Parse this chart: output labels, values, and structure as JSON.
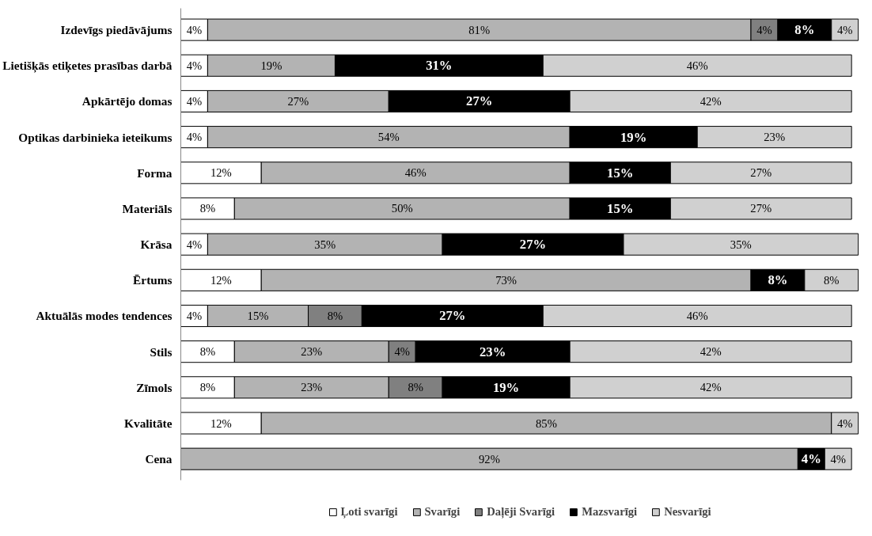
{
  "chart_data": {
    "type": "bar",
    "orientation": "horizontal",
    "stacked": true,
    "grid": false,
    "legend": "bottom",
    "categories": [
      "Izdevīgs piedāvājums",
      "Lietišķās etiķetes prasības darbā",
      "Apkārtējo domas",
      "Optikas darbinieka ieteikums",
      "Forma",
      "Materiāls",
      "Krāsa",
      "Ērtums",
      "Aktuālās modes tendences",
      "Stils",
      "Zīmols",
      "Kvalitāte",
      "Cena"
    ],
    "series": [
      {
        "name": "Ļoti svarīgi",
        "color": "#ffffff",
        "values": [
          4,
          4,
          4,
          4,
          12,
          8,
          4,
          12,
          4,
          8,
          8,
          12,
          null
        ],
        "value_labels": [
          "4%",
          "4%",
          "4%",
          "4%",
          "12%",
          "8%",
          "4%",
          "12%",
          "4%",
          "8%",
          "8%",
          "12%",
          null
        ]
      },
      {
        "name": "Svarīgi",
        "color": "#b3b3b3",
        "values": [
          81,
          19,
          27,
          54,
          46,
          50,
          35,
          73,
          15,
          23,
          23,
          85,
          92
        ],
        "value_labels": [
          "81%",
          "19%",
          "27%",
          "54%",
          "46%",
          "50%",
          "35%",
          "73%",
          "15%",
          "23%",
          "23%",
          "85%",
          "92%"
        ]
      },
      {
        "name": "Daļēji Svarīgi",
        "color": "#808080",
        "values": [
          4,
          null,
          null,
          null,
          null,
          null,
          null,
          null,
          8,
          4,
          8,
          null,
          null
        ],
        "value_labels": [
          "4%",
          null,
          null,
          null,
          null,
          null,
          null,
          null,
          "8%",
          "4%",
          "8%",
          null,
          null
        ]
      },
      {
        "name": "Mazsvarīgi",
        "color": "#000000",
        "values": [
          8,
          31,
          27,
          19,
          15,
          15,
          27,
          8,
          27,
          23,
          19,
          null,
          4
        ],
        "value_labels": [
          "8%",
          "31%",
          "27%",
          "19%",
          "15%",
          "15%",
          "27%",
          "8%",
          "27%",
          "23%",
          "19%",
          null,
          "4%"
        ]
      },
      {
        "name": "Nesvarīgi",
        "color": "#d0d0d0",
        "values": [
          4,
          46,
          42,
          23,
          27,
          27,
          35,
          8,
          46,
          42,
          42,
          4,
          4
        ],
        "value_labels": [
          "4%",
          "46%",
          "42%",
          "23%",
          "27%",
          "27%",
          "35%",
          "8%",
          "46%",
          "42%",
          "42%",
          "4%",
          "4%"
        ]
      }
    ]
  }
}
